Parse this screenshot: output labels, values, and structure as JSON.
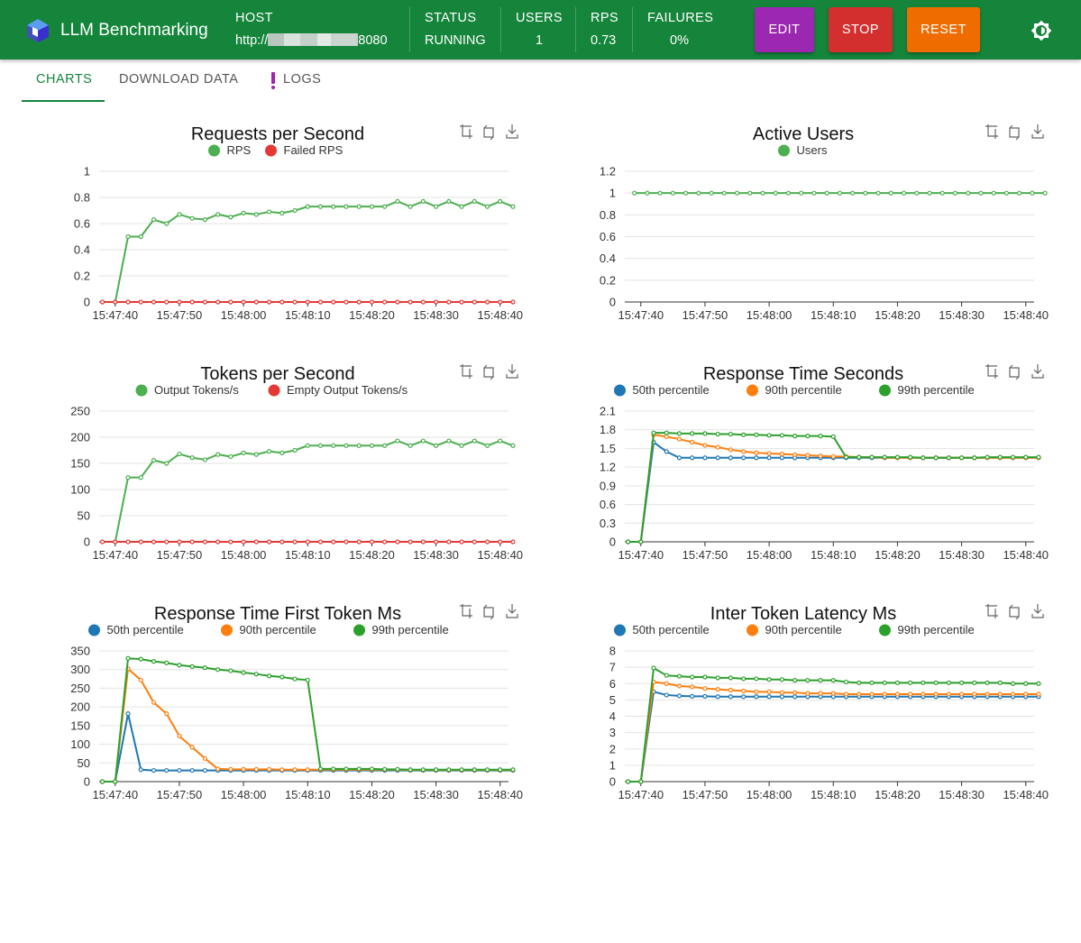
{
  "app": {
    "title": "LLM Benchmarking"
  },
  "stats": {
    "host_label": "HOST",
    "host_prefix": "http://",
    "host_suffix": "8080",
    "status_label": "STATUS",
    "status_value": "RUNNING",
    "users_label": "USERS",
    "users_value": "1",
    "rps_label": "RPS",
    "rps_value": "0.73",
    "failures_label": "FAILURES",
    "failures_value": "0%"
  },
  "buttons": {
    "edit": "EDIT",
    "stop": "STOP",
    "reset": "RESET"
  },
  "tabs": [
    {
      "label": "CHARTS"
    },
    {
      "label": "DOWNLOAD DATA"
    },
    {
      "label": "LOGS"
    }
  ],
  "colors": {
    "primary": "#15853b",
    "edit": "#9c27b0",
    "stop": "#d32f2f",
    "reset": "#ef6c00"
  },
  "icons": [
    "logo-icon",
    "brightness-icon",
    "zoom-icon",
    "zoom-reset-icon",
    "download-icon",
    "warning-icon"
  ],
  "chart_data": [
    {
      "type": "line",
      "title": "Requests per Second",
      "ylim": [
        0,
        1
      ],
      "yticks": [
        "0",
        "0.2",
        "0.4",
        "0.6",
        "0.8",
        "1"
      ],
      "xticks": [
        "15:47:40",
        "15:47:50",
        "15:48:00",
        "15:48:10",
        "15:48:20",
        "15:48:30",
        "15:48:40"
      ],
      "x_start": "15:47:38",
      "x_step_s": 2,
      "x_end": "15:48:41",
      "legend": "top",
      "series": [
        {
          "name": "RPS",
          "color": "#4caf50",
          "values": [
            null,
            0,
            0.5,
            0.5,
            0.63,
            0.6,
            0.67,
            0.64,
            0.63,
            0.67,
            0.65,
            0.68,
            0.67,
            0.69,
            0.68,
            0.7,
            0.73,
            0.73,
            0.73,
            0.73,
            0.73,
            0.73,
            0.73,
            0.77,
            0.73,
            0.77,
            0.73,
            0.77,
            0.73,
            0.77,
            0.73,
            0.77,
            0.73
          ]
        },
        {
          "name": "Failed RPS",
          "color": "#e53935",
          "values": [
            0,
            0,
            0,
            0,
            0,
            0,
            0,
            0,
            0,
            0,
            0,
            0,
            0,
            0,
            0,
            0,
            0,
            0,
            0,
            0,
            0,
            0,
            0,
            0,
            0,
            0,
            0,
            0,
            0,
            0,
            0,
            0,
            0
          ]
        }
      ]
    },
    {
      "type": "line",
      "title": "Active Users",
      "ylim": [
        0,
        1.2
      ],
      "yticks": [
        "0",
        "0.2",
        "0.4",
        "0.6",
        "0.8",
        "1",
        "1.2"
      ],
      "xticks": [
        "15:47:40",
        "15:47:50",
        "15:48:00",
        "15:48:10",
        "15:48:20",
        "15:48:30",
        "15:48:40"
      ],
      "x_start": "15:47:39",
      "x_step_s": 2,
      "x_end": "15:48:41",
      "legend": "top",
      "series": [
        {
          "name": "Users",
          "color": "#4caf50",
          "values": [
            1,
            1,
            1,
            1,
            1,
            1,
            1,
            1,
            1,
            1,
            1,
            1,
            1,
            1,
            1,
            1,
            1,
            1,
            1,
            1,
            1,
            1,
            1,
            1,
            1,
            1,
            1,
            1,
            1,
            1,
            1,
            1,
            1
          ]
        }
      ]
    },
    {
      "type": "line",
      "title": "Tokens per Second",
      "ylim": [
        0,
        250
      ],
      "yticks": [
        "0",
        "50",
        "100",
        "150",
        "200",
        "250"
      ],
      "xticks": [
        "15:47:40",
        "15:47:50",
        "15:48:00",
        "15:48:10",
        "15:48:20",
        "15:48:30",
        "15:48:40"
      ],
      "x_start": "15:47:38",
      "x_step_s": 2,
      "x_end": "15:48:41",
      "legend": "top",
      "series": [
        {
          "name": "Output Tokens/s",
          "color": "#4caf50",
          "values": [
            null,
            0,
            123,
            123,
            156,
            150,
            168,
            161,
            157,
            167,
            163,
            170,
            167,
            173,
            170,
            175,
            184,
            184,
            184,
            184,
            184,
            184,
            184,
            193,
            184,
            193,
            184,
            193,
            184,
            193,
            184,
            193,
            184
          ]
        },
        {
          "name": "Empty Output Tokens/s",
          "color": "#e53935",
          "values": [
            0,
            0,
            0,
            0,
            0,
            0,
            0,
            0,
            0,
            0,
            0,
            0,
            0,
            0,
            0,
            0,
            0,
            0,
            0,
            0,
            0,
            0,
            0,
            0,
            0,
            0,
            0,
            0,
            0,
            0,
            0,
            0,
            0
          ]
        }
      ]
    },
    {
      "type": "line",
      "title": "Response Time Seconds",
      "ylim": [
        0,
        2.1
      ],
      "yticks": [
        "0",
        "0.3",
        "0.6",
        "0.9",
        "1.2",
        "1.5",
        "1.8",
        "2.1"
      ],
      "xticks": [
        "15:47:40",
        "15:47:50",
        "15:48:00",
        "15:48:10",
        "15:48:20",
        "15:48:30",
        "15:48:40"
      ],
      "x_start": "15:47:38",
      "x_step_s": 2,
      "x_end": "15:48:41",
      "legend": "top",
      "series": [
        {
          "name": "50th percentile",
          "color": "#1f77b4",
          "values": [
            0,
            0,
            1.6,
            1.45,
            1.35,
            1.35,
            1.35,
            1.35,
            1.35,
            1.35,
            1.35,
            1.35,
            1.35,
            1.35,
            1.35,
            1.35,
            1.35,
            1.35,
            1.35,
            1.35,
            1.35,
            1.35,
            1.35,
            1.35,
            1.35,
            1.35,
            1.35,
            1.35,
            1.35,
            1.35,
            1.35,
            1.35,
            1.35
          ]
        },
        {
          "name": "90th percentile",
          "color": "#ff7f0e",
          "values": [
            0,
            0,
            1.72,
            1.69,
            1.65,
            1.6,
            1.55,
            1.52,
            1.48,
            1.45,
            1.43,
            1.42,
            1.41,
            1.4,
            1.39,
            1.38,
            1.37,
            1.37,
            1.36,
            1.36,
            1.35,
            1.35,
            1.35,
            1.35,
            1.35,
            1.35,
            1.35,
            1.35,
            1.35,
            1.35,
            1.35,
            1.35,
            1.35
          ]
        },
        {
          "name": "99th percentile",
          "color": "#2ca02c",
          "values": [
            0,
            0,
            1.75,
            1.75,
            1.74,
            1.74,
            1.74,
            1.73,
            1.73,
            1.72,
            1.72,
            1.71,
            1.71,
            1.7,
            1.7,
            1.7,
            1.69,
            1.36,
            1.36,
            1.36,
            1.36,
            1.36,
            1.36,
            1.35,
            1.35,
            1.35,
            1.35,
            1.35,
            1.36,
            1.36,
            1.36,
            1.36,
            1.36
          ]
        }
      ]
    },
    {
      "type": "line",
      "title": "Response Time First Token Ms",
      "ylim": [
        0,
        350
      ],
      "yticks": [
        "0",
        "50",
        "100",
        "150",
        "200",
        "250",
        "300",
        "350"
      ],
      "xticks": [
        "15:47:40",
        "15:47:50",
        "15:48:00",
        "15:48:10",
        "15:48:20",
        "15:48:30",
        "15:48:40"
      ],
      "x_start": "15:47:38",
      "x_step_s": 2,
      "x_end": "15:48:41",
      "legend": "top",
      "series": [
        {
          "name": "50th percentile",
          "color": "#1f77b4",
          "values": [
            0,
            0,
            182,
            32,
            30,
            30,
            30,
            30,
            30,
            30,
            30,
            30,
            30,
            30,
            30,
            30,
            30,
            30,
            30,
            30,
            30,
            30,
            30,
            30,
            30,
            30,
            30,
            30,
            30,
            30,
            30,
            30,
            30
          ]
        },
        {
          "name": "90th percentile",
          "color": "#ff7f0e",
          "values": [
            0,
            0,
            302,
            272,
            212,
            182,
            122,
            92,
            62,
            34,
            33,
            33,
            33,
            33,
            32,
            32,
            32,
            32,
            32,
            32,
            32,
            32,
            32,
            32,
            31,
            31,
            31,
            31,
            31,
            31,
            31,
            31,
            31
          ]
        },
        {
          "name": "99th percentile",
          "color": "#2ca02c",
          "values": [
            0,
            0,
            330,
            328,
            322,
            318,
            312,
            308,
            305,
            300,
            297,
            292,
            288,
            283,
            280,
            275,
            272,
            34,
            34,
            34,
            34,
            34,
            33,
            33,
            32,
            32,
            32,
            32,
            32,
            32,
            32,
            32,
            32
          ]
        }
      ]
    },
    {
      "type": "line",
      "title": "Inter Token Latency Ms",
      "ylim": [
        0,
        8
      ],
      "yticks": [
        "0",
        "1",
        "2",
        "3",
        "4",
        "5",
        "6",
        "7",
        "8"
      ],
      "xticks": [
        "15:47:40",
        "15:47:50",
        "15:48:00",
        "15:48:10",
        "15:48:20",
        "15:48:30",
        "15:48:40"
      ],
      "x_start": "15:47:38",
      "x_step_s": 2,
      "x_end": "15:48:41",
      "legend": "top",
      "series": [
        {
          "name": "50th percentile",
          "color": "#1f77b4",
          "values": [
            0,
            0,
            5.5,
            5.3,
            5.25,
            5.22,
            5.22,
            5.2,
            5.2,
            5.2,
            5.2,
            5.2,
            5.2,
            5.2,
            5.2,
            5.2,
            5.2,
            5.2,
            5.2,
            5.2,
            5.2,
            5.2,
            5.2,
            5.2,
            5.2,
            5.2,
            5.2,
            5.2,
            5.2,
            5.2,
            5.2,
            5.2,
            5.2
          ]
        },
        {
          "name": "90th percentile",
          "color": "#ff7f0e",
          "values": [
            0,
            0,
            6.1,
            6.0,
            5.85,
            5.8,
            5.7,
            5.65,
            5.6,
            5.55,
            5.5,
            5.5,
            5.45,
            5.45,
            5.4,
            5.4,
            5.4,
            5.35,
            5.35,
            5.35,
            5.35,
            5.35,
            5.35,
            5.35,
            5.35,
            5.35,
            5.35,
            5.35,
            5.35,
            5.35,
            5.35,
            5.35,
            5.35
          ]
        },
        {
          "name": "99th percentile",
          "color": "#2ca02c",
          "values": [
            0,
            0,
            6.95,
            6.5,
            6.45,
            6.4,
            6.4,
            6.35,
            6.35,
            6.3,
            6.3,
            6.25,
            6.25,
            6.2,
            6.2,
            6.2,
            6.2,
            6.1,
            6.05,
            6.05,
            6.05,
            6.05,
            6.05,
            6.05,
            6.05,
            6.05,
            6.05,
            6.05,
            6.05,
            6.05,
            6.0,
            6.0,
            6.0
          ]
        }
      ]
    }
  ]
}
